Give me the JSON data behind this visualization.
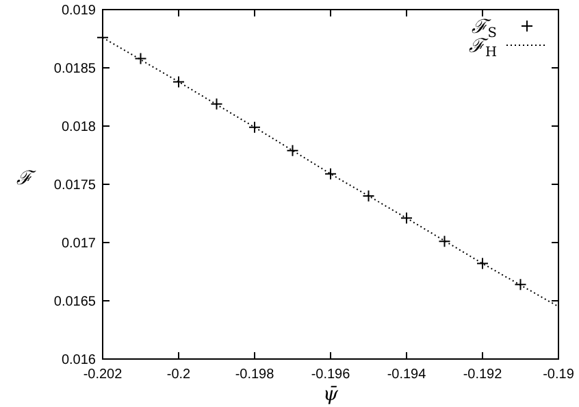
{
  "chart_data": {
    "type": "scatter",
    "xlabel": "ψ̄",
    "ylabel": "ℱ",
    "xlim": [
      -0.202,
      -0.19
    ],
    "ylim": [
      0.016,
      0.019
    ],
    "xticks": [
      -0.202,
      -0.2,
      -0.198,
      -0.196,
      -0.194,
      -0.192,
      -0.19
    ],
    "yticks": [
      0.016,
      0.0165,
      0.017,
      0.0175,
      0.018,
      0.0185,
      0.019
    ],
    "grid": false,
    "legend": "top right",
    "series": [
      {
        "name": "ℱ$_{S}$",
        "marker": "cross",
        "color": "#000000",
        "x": [
          -0.202,
          -0.201,
          -0.2,
          -0.199,
          -0.198,
          -0.197,
          -0.196,
          -0.195,
          -0.194,
          -0.193,
          -0.192,
          -0.191
        ],
        "values": [
          0.01876,
          0.01858,
          0.01838,
          0.01819,
          0.01799,
          0.01779,
          0.01759,
          0.0174,
          0.01721,
          0.01701,
          0.01682,
          0.01664
        ]
      },
      {
        "name": "ℱ$_{H}$",
        "type": "line",
        "line_style": "dotted",
        "color": "#000000",
        "x": [
          -0.202,
          -0.2,
          -0.198,
          -0.196,
          -0.194,
          -0.192,
          -0.19
        ],
        "values": [
          0.01876,
          0.01838,
          0.01799,
          0.01759,
          0.01721,
          0.01682,
          0.01645
        ]
      }
    ]
  }
}
